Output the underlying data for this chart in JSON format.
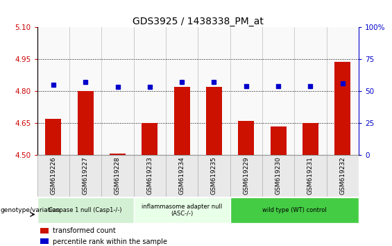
{
  "title": "GDS3925 / 1438338_PM_at",
  "samples": [
    "GSM619226",
    "GSM619227",
    "GSM619228",
    "GSM619233",
    "GSM619234",
    "GSM619235",
    "GSM619229",
    "GSM619230",
    "GSM619231",
    "GSM619232"
  ],
  "red_values": [
    4.668,
    4.8,
    4.507,
    4.651,
    4.82,
    4.82,
    4.66,
    4.635,
    4.65,
    4.938
  ],
  "blue_values": [
    55,
    57,
    53,
    53,
    57,
    57,
    54,
    54,
    54,
    56
  ],
  "ylim_left": [
    4.5,
    5.1
  ],
  "ylim_right": [
    0,
    100
  ],
  "yticks_left": [
    4.5,
    4.65,
    4.8,
    4.95,
    5.1
  ],
  "yticks_right": [
    0,
    25,
    50,
    75,
    100
  ],
  "ytick_labels_right": [
    "0",
    "25",
    "50",
    "75",
    "100%"
  ],
  "groups": [
    {
      "label": "Caspase 1 null (Casp1-/-)",
      "start": 0,
      "end": 3,
      "color": "#d4f0d4"
    },
    {
      "label": "inflammasome adapter null\n(ASC-/-)",
      "start": 3,
      "end": 6,
      "color": "#e8ffe8"
    },
    {
      "label": "wild type (WT) control",
      "start": 6,
      "end": 10,
      "color": "#44cc44"
    }
  ],
  "bar_color": "#cc1100",
  "dot_color": "#0000cc",
  "legend_red": "transformed count",
  "legend_blue": "percentile rank within the sample",
  "left_axis_color": "#cc0000",
  "right_axis_color": "#0000cc",
  "bar_bottom": 4.5,
  "bar_width": 0.5,
  "gridlines": [
    4.65,
    4.8,
    4.95
  ]
}
